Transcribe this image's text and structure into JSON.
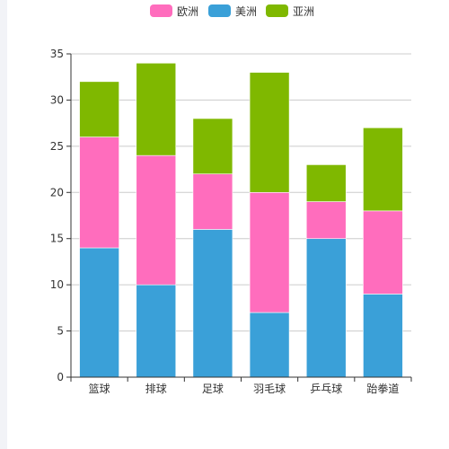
{
  "chart_data": {
    "type": "bar",
    "stacked": true,
    "categories": [
      "篮球",
      "排球",
      "足球",
      "羽毛球",
      "乒乓球",
      "跆拳道"
    ],
    "series": [
      {
        "name": "美洲",
        "color": "#3aa0d8",
        "values": [
          14,
          10,
          16,
          7,
          15,
          9
        ]
      },
      {
        "name": "欧洲",
        "color": "#ff6dbd",
        "values": [
          12,
          14,
          6,
          13,
          4,
          9
        ]
      },
      {
        "name": "亚洲",
        "color": "#7fb800",
        "values": [
          6,
          10,
          6,
          13,
          4,
          9
        ]
      }
    ],
    "legend": [
      "欧洲",
      "美洲",
      "亚洲"
    ],
    "ylim": [
      0,
      35
    ],
    "yticks": [
      0,
      5,
      10,
      15,
      20,
      25,
      30,
      35
    ],
    "grid": true,
    "legend_position": "top-center"
  }
}
